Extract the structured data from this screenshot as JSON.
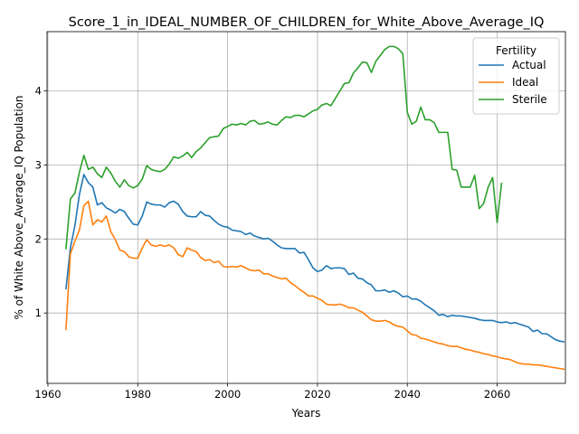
{
  "chart_data": {
    "type": "line",
    "title": "Score_1_in_IDEAL_NUMBER_OF_CHILDREN_for_White_Above_Average_IQ",
    "xlabel": "Years",
    "ylabel": "% of White Above_Average_IQ Population",
    "xlim": [
      1959.8,
      2075.2
    ],
    "ylim": [
      0.05,
      4.8
    ],
    "xticks": [
      1960,
      1980,
      2000,
      2020,
      2040,
      2060
    ],
    "yticks": [
      1,
      2,
      3,
      4
    ],
    "grid": true,
    "legend": {
      "title": "Fertility",
      "position": "top-right"
    },
    "x_start": 1964,
    "series": [
      {
        "name": "Actual",
        "color": "#1f77b4",
        "values": [
          1.32,
          1.88,
          2.18,
          2.6,
          2.87,
          2.76,
          2.7,
          2.46,
          2.49,
          2.42,
          2.39,
          2.35,
          2.4,
          2.37,
          2.28,
          2.2,
          2.19,
          2.31,
          2.5,
          2.47,
          2.46,
          2.46,
          2.43,
          2.49,
          2.51,
          2.47,
          2.37,
          2.31,
          2.3,
          2.3,
          2.37,
          2.32,
          2.31,
          2.25,
          2.2,
          2.17,
          2.16,
          2.12,
          2.11,
          2.1,
          2.06,
          2.08,
          2.04,
          2.02,
          2.0,
          2.01,
          1.97,
          1.92,
          1.88,
          1.87,
          1.87,
          1.87,
          1.81,
          1.82,
          1.72,
          1.61,
          1.56,
          1.58,
          1.64,
          1.6,
          1.61,
          1.61,
          1.6,
          1.52,
          1.54,
          1.47,
          1.46,
          1.41,
          1.38,
          1.3,
          1.3,
          1.31,
          1.28,
          1.3,
          1.27,
          1.22,
          1.23,
          1.19,
          1.19,
          1.16,
          1.11,
          1.07,
          1.03,
          0.97,
          0.98,
          0.95,
          0.97,
          0.96,
          0.96,
          0.95,
          0.94,
          0.93,
          0.91,
          0.9,
          0.9,
          0.9,
          0.88,
          0.87,
          0.88,
          0.86,
          0.87,
          0.85,
          0.83,
          0.81,
          0.75,
          0.77,
          0.72,
          0.72,
          0.68,
          0.64,
          0.62,
          0.61
        ]
      },
      {
        "name": "Ideal",
        "color": "#ff7f0e",
        "values": [
          0.77,
          1.8,
          1.97,
          2.12,
          2.45,
          2.51,
          2.19,
          2.26,
          2.23,
          2.31,
          2.1,
          1.99,
          1.85,
          1.83,
          1.76,
          1.74,
          1.74,
          1.88,
          1.99,
          1.92,
          1.9,
          1.92,
          1.9,
          1.92,
          1.88,
          1.79,
          1.76,
          1.88,
          1.85,
          1.83,
          1.75,
          1.71,
          1.72,
          1.68,
          1.7,
          1.63,
          1.62,
          1.63,
          1.62,
          1.64,
          1.61,
          1.58,
          1.57,
          1.58,
          1.53,
          1.53,
          1.5,
          1.48,
          1.46,
          1.47,
          1.41,
          1.37,
          1.32,
          1.28,
          1.23,
          1.23,
          1.2,
          1.17,
          1.12,
          1.11,
          1.11,
          1.12,
          1.1,
          1.07,
          1.07,
          1.04,
          1.01,
          0.96,
          0.91,
          0.89,
          0.89,
          0.9,
          0.88,
          0.84,
          0.82,
          0.81,
          0.76,
          0.71,
          0.7,
          0.66,
          0.65,
          0.63,
          0.61,
          0.59,
          0.58,
          0.56,
          0.55,
          0.55,
          0.53,
          0.51,
          0.5,
          0.48,
          0.47,
          0.45,
          0.44,
          0.42,
          0.41,
          0.39,
          0.38,
          0.37,
          0.34,
          0.32,
          0.31,
          0.31,
          0.3,
          0.3,
          0.29,
          0.28,
          0.27,
          0.26,
          0.25,
          0.24
        ]
      },
      {
        "name": "Sterile",
        "color": "#2ca02c",
        "values": [
          1.86,
          2.54,
          2.62,
          2.9,
          3.13,
          2.94,
          2.97,
          2.88,
          2.83,
          2.97,
          2.89,
          2.78,
          2.7,
          2.8,
          2.72,
          2.69,
          2.72,
          2.81,
          2.99,
          2.94,
          2.92,
          2.91,
          2.94,
          3.01,
          3.11,
          3.09,
          3.12,
          3.17,
          3.1,
          3.18,
          3.23,
          3.3,
          3.37,
          3.38,
          3.39,
          3.49,
          3.52,
          3.55,
          3.54,
          3.56,
          3.54,
          3.59,
          3.6,
          3.55,
          3.56,
          3.58,
          3.55,
          3.54,
          3.6,
          3.65,
          3.64,
          3.67,
          3.67,
          3.65,
          3.69,
          3.73,
          3.75,
          3.81,
          3.83,
          3.8,
          3.9,
          4.0,
          4.1,
          4.11,
          4.24,
          4.31,
          4.39,
          4.38,
          4.25,
          4.4,
          4.48,
          4.56,
          4.6,
          4.6,
          4.57,
          4.5,
          3.71,
          3.55,
          3.59,
          3.78,
          3.61,
          3.61,
          3.57,
          3.44,
          3.44,
          3.44,
          2.94,
          2.93,
          2.7,
          2.7,
          2.7,
          2.86,
          2.41,
          2.48,
          2.7,
          2.83,
          2.22,
          2.76
        ]
      }
    ]
  }
}
